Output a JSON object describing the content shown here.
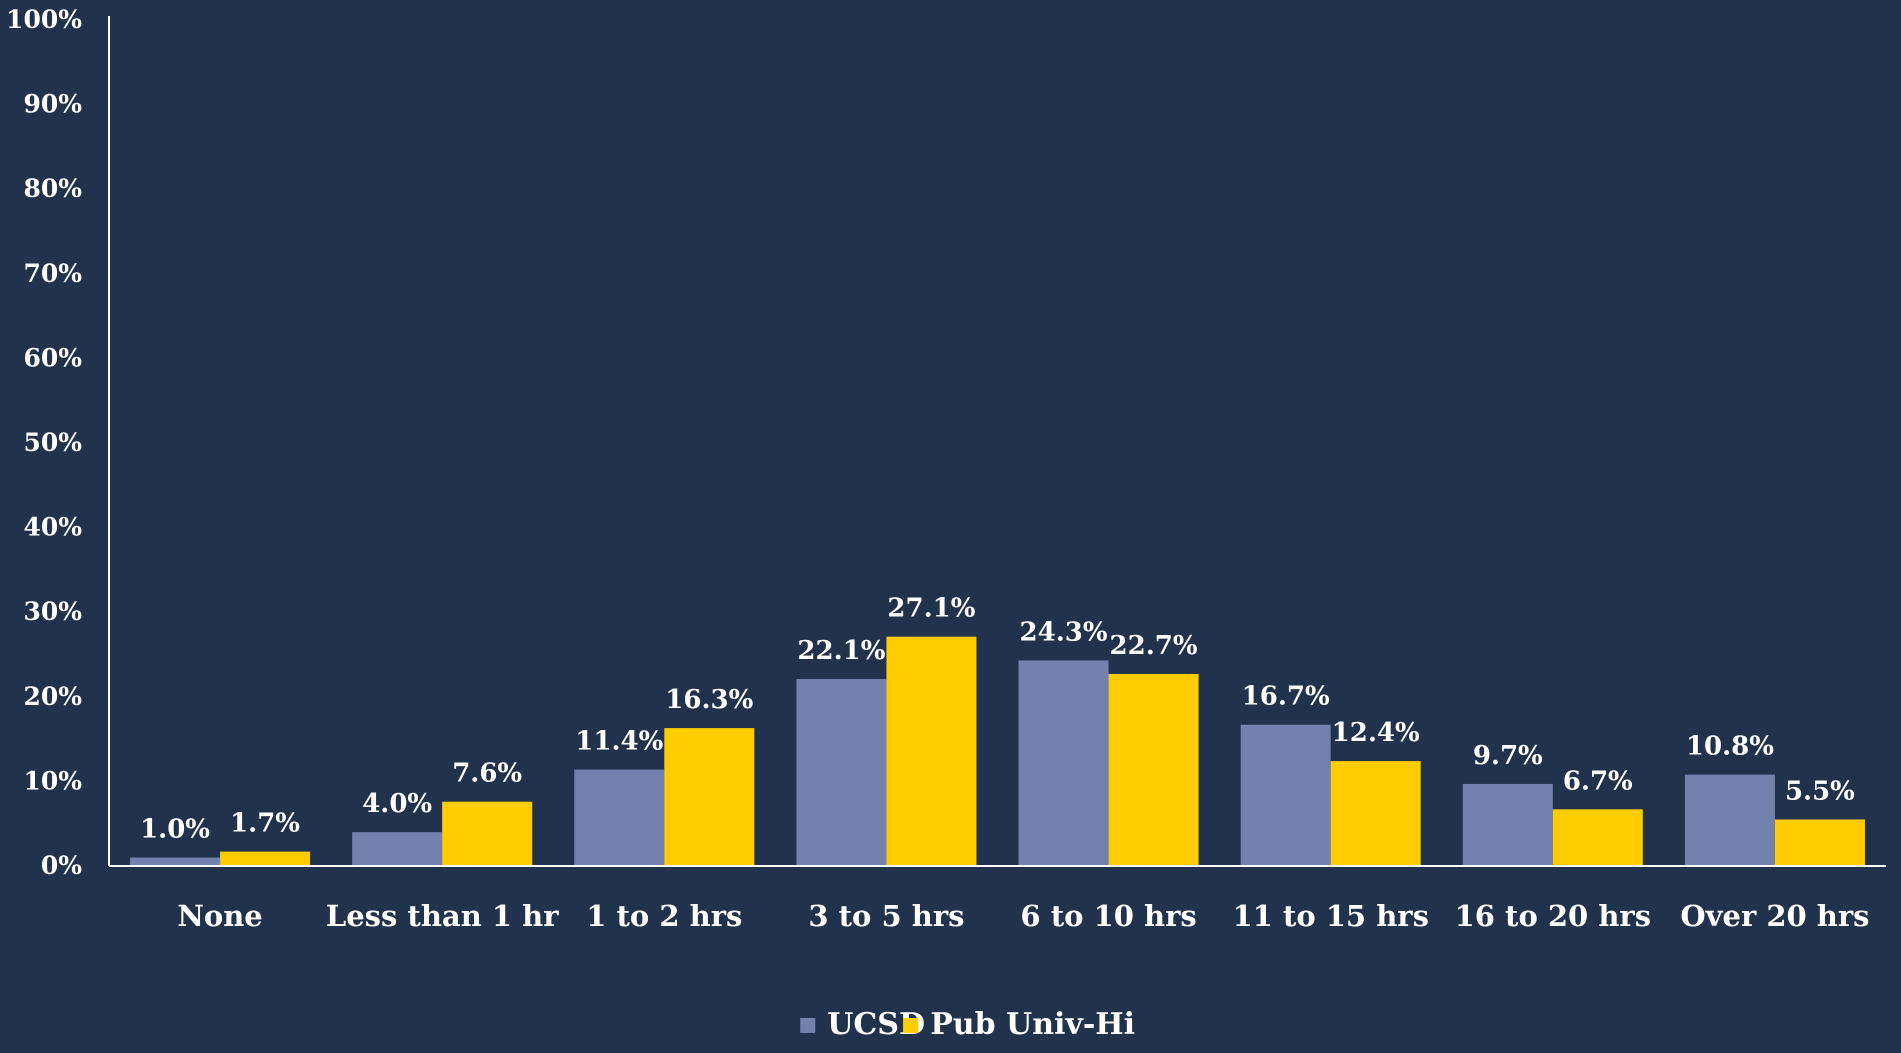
{
  "chart_data": {
    "type": "bar",
    "title": "",
    "xlabel": "",
    "ylabel": "",
    "ylim": [
      0,
      100
    ],
    "yticks": [
      "0%",
      "10%",
      "20%",
      "30%",
      "40%",
      "50%",
      "60%",
      "70%",
      "80%",
      "90%",
      "100%"
    ],
    "categories": [
      "None",
      "Less than 1 hr",
      "1 to 2 hrs",
      "3 to 5 hrs",
      "6 to 10 hrs",
      "11 to 15 hrs",
      "16 to 20 hrs",
      "Over 20 hrs"
    ],
    "series": [
      {
        "name": "UCSD",
        "color": "#7381ad",
        "values": [
          1.0,
          4.0,
          11.4,
          22.1,
          24.3,
          16.7,
          9.7,
          10.8
        ],
        "labels": [
          "1.0%",
          "4.0%",
          "11.4%",
          "22.1%",
          "24.3%",
          "16.7%",
          "9.7%",
          "10.8%"
        ]
      },
      {
        "name": "Pub Univ-Hi",
        "color": "#ffcc00",
        "values": [
          1.7,
          7.6,
          16.3,
          27.1,
          22.7,
          12.4,
          6.7,
          5.5
        ],
        "labels": [
          "1.7%",
          "7.6%",
          "16.3%",
          "27.1%",
          "22.7%",
          "12.4%",
          "6.7%",
          "5.5%"
        ]
      }
    ],
    "legend": {
      "position": "bottom",
      "items": [
        "UCSD",
        "Pub Univ-Hi"
      ]
    },
    "grid": false,
    "background": "#21324c",
    "axis_color": "#ffffff",
    "text_color": "#ffffff"
  }
}
